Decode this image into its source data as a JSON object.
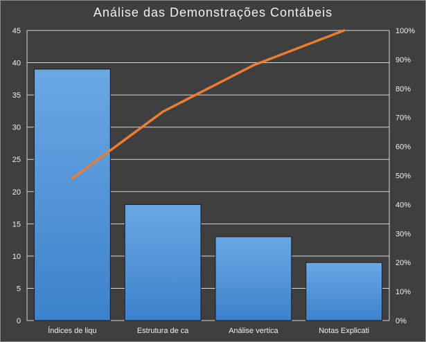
{
  "chart_data": {
    "type": "bar",
    "title": "Análise das Demonstrações Contábeis",
    "categories": [
      "Índices de liqu",
      "Estrutura de ca",
      "Análise vertica",
      "Notas Explicati"
    ],
    "series": [
      {
        "values": [
          39,
          18,
          13,
          9
        ],
        "color": "#4a8fd6"
      }
    ],
    "line_series": {
      "values": [
        0.49,
        0.72,
        0.88,
        1.0
      ],
      "color": "#ed7d31",
      "axis": "secondary"
    },
    "ylim": [
      0,
      45
    ],
    "yticks": [
      0,
      5,
      10,
      15,
      20,
      25,
      30,
      35,
      40,
      45
    ],
    "y2lim": [
      0,
      1
    ],
    "y2ticks": [
      "0%",
      "10%",
      "20%",
      "30%",
      "40%",
      "50%",
      "60%",
      "70%",
      "80%",
      "90%",
      "100%"
    ],
    "grid": true,
    "colors": {
      "background": "#404040",
      "gridline": "#d9d9d9",
      "text": "#f0f0f0"
    }
  }
}
